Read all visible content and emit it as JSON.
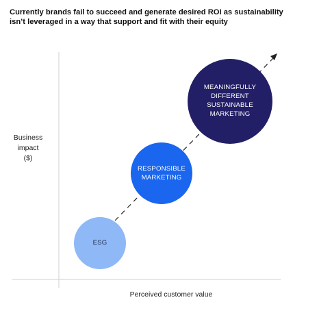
{
  "title_lines": [
    "Currently brands fail to succeed and generate desired ROI as sustainability",
    "isn’t leveraged in a way that support and fit with their equity"
  ],
  "y_axis": {
    "label_lines": [
      "Business",
      "impact",
      "($)"
    ]
  },
  "x_axis": {
    "label": "Perceived customer value"
  },
  "bubbles": [
    {
      "id": "esg",
      "label_lines": [
        "ESG"
      ],
      "color": "#8fb8f7",
      "text_color": "#1a2a4a"
    },
    {
      "id": "responsible-marketing",
      "label_lines": [
        "RESPONSIBLE",
        "MARKETING"
      ],
      "color": "#1a66ee",
      "text_color": "#ffffff"
    },
    {
      "id": "meaningfully-different-sustainable-marketing",
      "label_lines": [
        "MEANINGFULLY",
        "DIFFERENT",
        "SUSTAINABLE",
        "MARKETING"
      ],
      "color": "#231f66",
      "text_color": "#ffffff"
    }
  ],
  "arrow": {
    "style": "dashed",
    "color": "#222222"
  }
}
